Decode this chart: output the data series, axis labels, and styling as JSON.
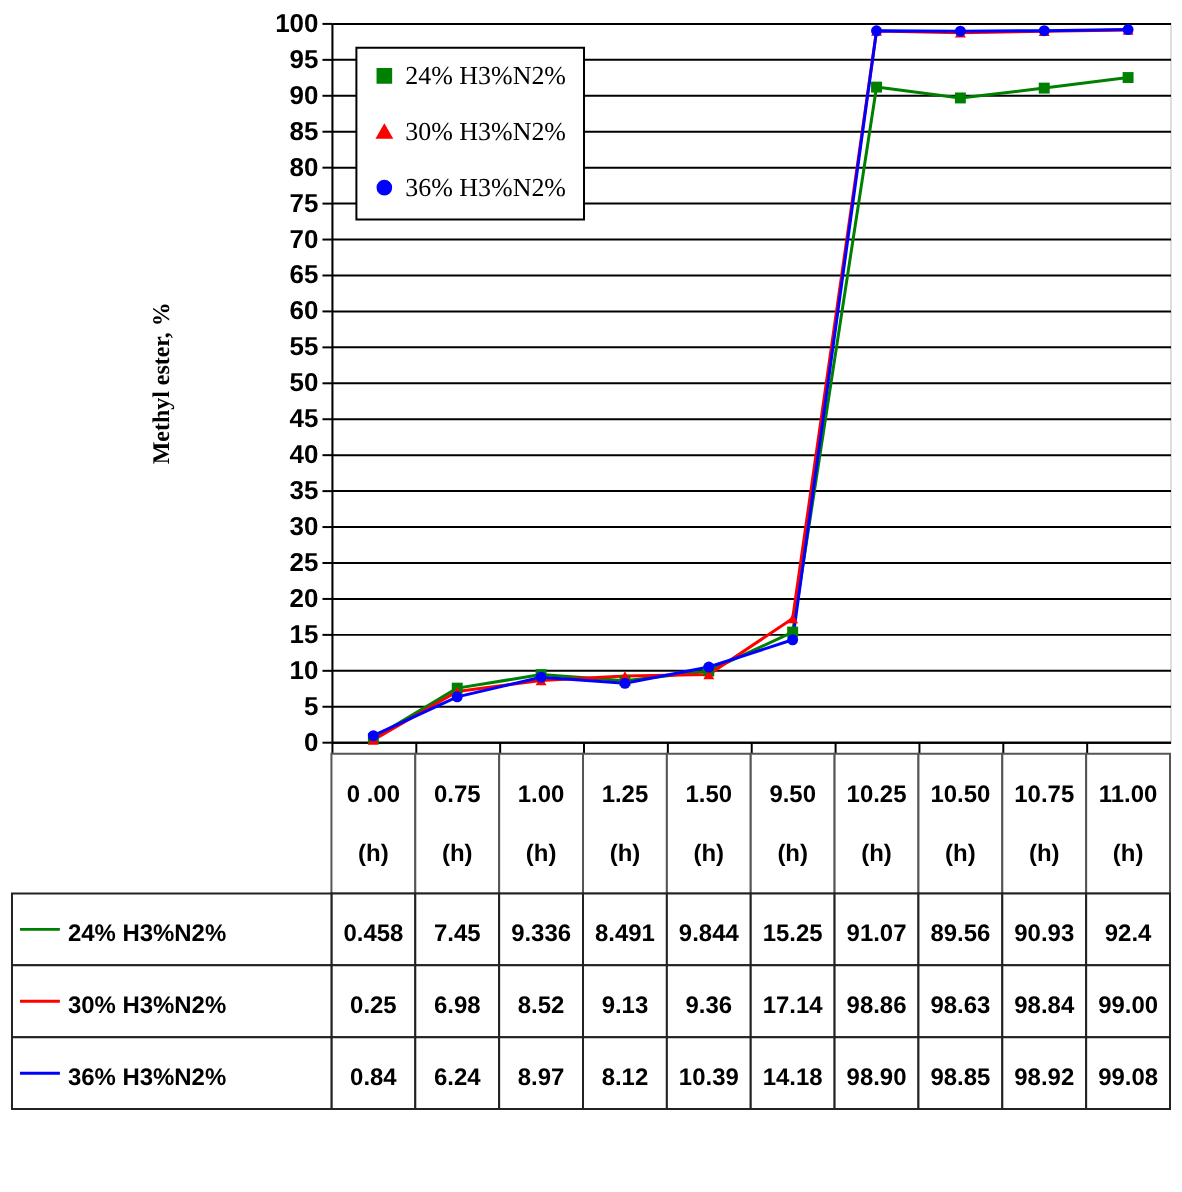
{
  "chart_data": {
    "type": "line",
    "ylabel": "Methyl ester, %",
    "categories": [
      "0 .00 (h)",
      "0.75 (h)",
      "1.00 (h)",
      "1.25 (h)",
      "1.50 (h)",
      "9.50 (h)",
      "10.25 (h)",
      "10.50 (h)",
      "10.75 (h)",
      "11.00 (h)"
    ],
    "series": [
      {
        "name": "24% H3%N2%",
        "color": "#008000",
        "marker": "square",
        "values": [
          0.458,
          7.45,
          9.336,
          8.491,
          9.844,
          15.25,
          91.07,
          89.56,
          90.93,
          92.4
        ],
        "value_labels": [
          "0.458",
          "7.45",
          "9.336",
          "8.491",
          "9.844",
          "15.25",
          "91.07",
          "89.56",
          "90.93",
          "92.4"
        ]
      },
      {
        "name": "30% H3%N2%",
        "color": "#ff0000",
        "marker": "triangle",
        "values": [
          0.25,
          6.98,
          8.52,
          9.13,
          9.36,
          17.14,
          98.86,
          98.63,
          98.84,
          99.0
        ],
        "value_labels": [
          "0.25",
          "6.98",
          "8.52",
          "9.13",
          "9.36",
          "17.14",
          "98.86",
          "98.63",
          "98.84",
          "99.00"
        ]
      },
      {
        "name": "36% H3%N2%",
        "color": "#0000ff",
        "marker": "circle",
        "values": [
          0.84,
          6.24,
          8.97,
          8.12,
          10.39,
          14.18,
          98.9,
          98.85,
          98.92,
          99.08
        ],
        "value_labels": [
          "0.84",
          "6.24",
          "8.97",
          "8.12",
          "10.39",
          "14.18",
          "98.90",
          "98.85",
          "98.92",
          "99.08"
        ]
      }
    ],
    "ylim": [
      0,
      100
    ],
    "yticks": [
      0,
      5,
      10,
      15,
      20,
      25,
      30,
      35,
      40,
      45,
      50,
      55,
      60,
      65,
      70,
      75,
      80,
      85,
      90,
      95,
      100
    ],
    "grid": "y",
    "legend": "top left"
  }
}
